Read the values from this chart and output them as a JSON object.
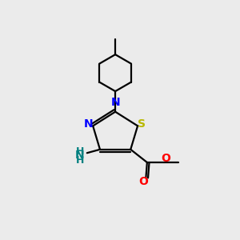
{
  "bg_color": "#ebebeb",
  "atom_colors": {
    "N": "#0000ff",
    "S": "#b8b800",
    "O": "#ff0000",
    "C": "#000000",
    "NH2_N": "#008080"
  },
  "font_size_atom": 10,
  "font_size_sub": 7.5
}
